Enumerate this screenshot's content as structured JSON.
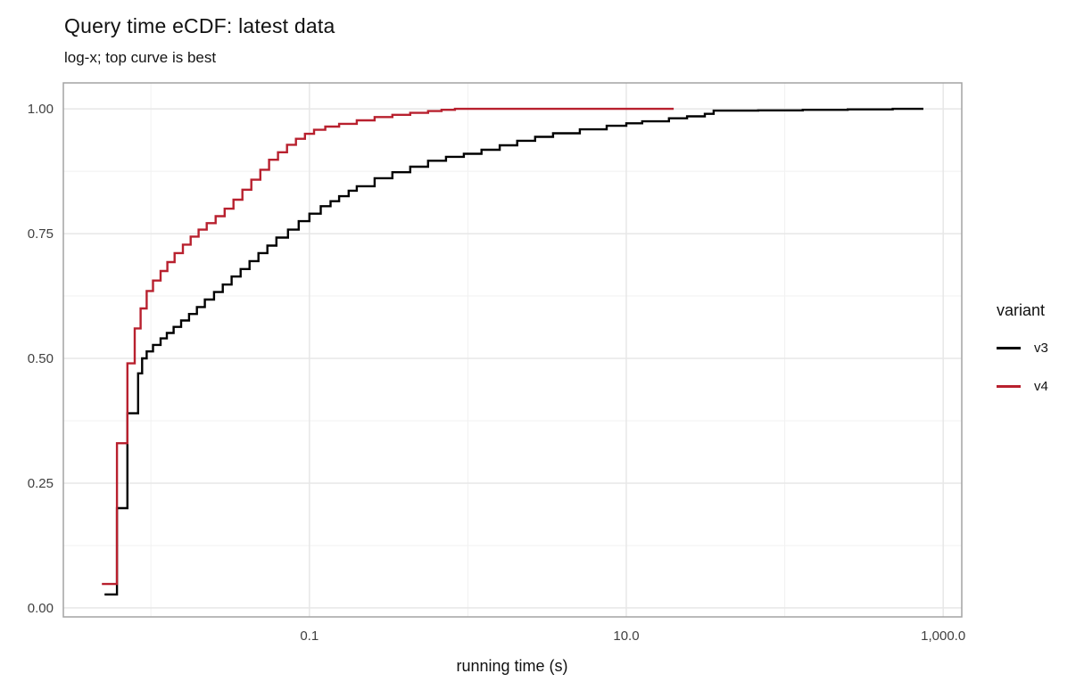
{
  "page": {
    "title": "Query time eCDF: latest data",
    "subtitle": "log-x; top curve is best"
  },
  "axes": {
    "x": {
      "label": "running time (s)",
      "scale": "log10",
      "ticks": [
        {
          "value": 0.1,
          "label": "0.1"
        },
        {
          "value": 10,
          "label": "10.0"
        },
        {
          "value": 1000,
          "label": "1,000.0"
        }
      ],
      "minor_ticks": [
        0.01,
        1,
        100
      ],
      "lim": [
        0.0028,
        1310
      ]
    },
    "y": {
      "label": "",
      "ticks": [
        {
          "value": 0,
          "label": "0.00"
        },
        {
          "value": 0.25,
          "label": "0.25"
        },
        {
          "value": 0.5,
          "label": "0.50"
        },
        {
          "value": 0.75,
          "label": "0.75"
        },
        {
          "value": 1,
          "label": "1.00"
        }
      ],
      "minor_ticks": [
        0.125,
        0.375,
        0.625,
        0.875
      ],
      "lim": [
        -0.018,
        1.052
      ]
    }
  },
  "legend": {
    "title": "variant",
    "position": "right",
    "entries": [
      {
        "label": "v3",
        "color": "#000000"
      },
      {
        "label": "v4",
        "color": "#B8202E"
      }
    ]
  },
  "colors": {
    "background": "#ffffff",
    "grid_major": "#e7e7e7",
    "grid_minor": "#f1f1f1",
    "panel_border": "#a3a3a3",
    "tick_text": "#404040",
    "title_text": "#111111"
  },
  "chart_data": {
    "type": "line",
    "subtype": "ecdf_step",
    "title": "Query time eCDF: latest data",
    "subtitle": "log-x; top curve is best",
    "xlabel": "running time (s)",
    "ylabel": "",
    "xscale": "log",
    "xlim": [
      0.0028,
      1310
    ],
    "ylim": [
      -0.018,
      1.052
    ],
    "grid": true,
    "legend_position": "right",
    "series": [
      {
        "name": "v3",
        "color": "#000000",
        "points": [
          [
            0.0051,
            0.027
          ],
          [
            0.0061,
            0.2
          ],
          [
            0.0071,
            0.39
          ],
          [
            0.0083,
            0.47
          ],
          [
            0.0088,
            0.5
          ],
          [
            0.0094,
            0.514
          ],
          [
            0.0103,
            0.527
          ],
          [
            0.0115,
            0.54
          ],
          [
            0.0126,
            0.551
          ],
          [
            0.0139,
            0.563
          ],
          [
            0.0155,
            0.576
          ],
          [
            0.0174,
            0.589
          ],
          [
            0.0195,
            0.603
          ],
          [
            0.0219,
            0.618
          ],
          [
            0.025,
            0.633
          ],
          [
            0.0284,
            0.648
          ],
          [
            0.0323,
            0.664
          ],
          [
            0.0368,
            0.679
          ],
          [
            0.0419,
            0.695
          ],
          [
            0.0477,
            0.711
          ],
          [
            0.0543,
            0.726
          ],
          [
            0.0619,
            0.742
          ],
          [
            0.0733,
            0.758
          ],
          [
            0.0856,
            0.775
          ],
          [
            0.1,
            0.79
          ],
          [
            0.118,
            0.805
          ],
          [
            0.136,
            0.815
          ],
          [
            0.154,
            0.825
          ],
          [
            0.177,
            0.836
          ],
          [
            0.199,
            0.845
          ],
          [
            0.258,
            0.861
          ],
          [
            0.334,
            0.873
          ],
          [
            0.433,
            0.884
          ],
          [
            0.561,
            0.896
          ],
          [
            0.728,
            0.904
          ],
          [
            0.943,
            0.91
          ],
          [
            1.22,
            0.918
          ],
          [
            1.59,
            0.927
          ],
          [
            2.05,
            0.936
          ],
          [
            2.66,
            0.944
          ],
          [
            3.45,
            0.951
          ],
          [
            5.09,
            0.959
          ],
          [
            7.52,
            0.966
          ],
          [
            10.0,
            0.971
          ],
          [
            12.6,
            0.975
          ],
          [
            18.6,
            0.981
          ],
          [
            24.2,
            0.985
          ],
          [
            31.3,
            0.99
          ],
          [
            35.6,
            0.9965
          ],
          [
            68,
            0.997
          ],
          [
            130,
            0.998
          ],
          [
            250,
            0.999
          ],
          [
            480,
            1.0
          ],
          [
            750,
            1.0
          ]
        ]
      },
      {
        "name": "v4",
        "color": "#B8202E",
        "points": [
          [
            0.0049,
            0.048
          ],
          [
            0.0061,
            0.33
          ],
          [
            0.0071,
            0.49
          ],
          [
            0.0079,
            0.56
          ],
          [
            0.0086,
            0.6
          ],
          [
            0.0094,
            0.635
          ],
          [
            0.0103,
            0.656
          ],
          [
            0.0115,
            0.675
          ],
          [
            0.0127,
            0.693
          ],
          [
            0.0141,
            0.711
          ],
          [
            0.0159,
            0.728
          ],
          [
            0.0178,
            0.744
          ],
          [
            0.02,
            0.758
          ],
          [
            0.0225,
            0.771
          ],
          [
            0.0256,
            0.785
          ],
          [
            0.0292,
            0.8
          ],
          [
            0.0332,
            0.818
          ],
          [
            0.0378,
            0.838
          ],
          [
            0.043,
            0.858
          ],
          [
            0.049,
            0.878
          ],
          [
            0.0557,
            0.898
          ],
          [
            0.0634,
            0.913
          ],
          [
            0.0722,
            0.928
          ],
          [
            0.0822,
            0.94
          ],
          [
            0.0937,
            0.95
          ],
          [
            0.107,
            0.958
          ],
          [
            0.126,
            0.9645
          ],
          [
            0.154,
            0.97
          ],
          [
            0.199,
            0.977
          ],
          [
            0.258,
            0.9835
          ],
          [
            0.334,
            0.988
          ],
          [
            0.433,
            0.992
          ],
          [
            0.561,
            0.9955
          ],
          [
            0.682,
            0.998
          ],
          [
            0.829,
            1.0
          ],
          [
            19.9,
            1.0
          ]
        ]
      }
    ]
  }
}
